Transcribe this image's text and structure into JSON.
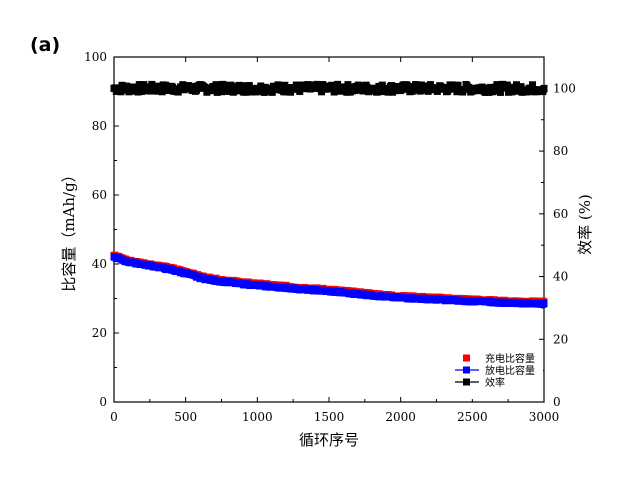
{
  "panel_label": "(a)",
  "chart_data": {
    "type": "scatter",
    "xlabel": "循环序号",
    "ylabel_left": "比容量（mAh/g）",
    "ylabel_right": "效率 (%)",
    "xlim": [
      0,
      3000
    ],
    "ylim_left": [
      0,
      100
    ],
    "ylim_right": [
      0,
      110
    ],
    "x_ticks": [
      0,
      500,
      1000,
      1500,
      2000,
      2500,
      3000
    ],
    "y_ticks_left": [
      0,
      20,
      40,
      60,
      80,
      100
    ],
    "y_ticks_right": [
      0,
      20,
      40,
      60,
      80,
      100
    ],
    "grid": false,
    "legend_position": "bottom-right",
    "series": [
      {
        "name": "充电比容量",
        "axis": "left",
        "color": "#ff0000",
        "marker": "square",
        "x": [
          0,
          100,
          200,
          300,
          400,
          500,
          600,
          700,
          800,
          900,
          1000,
          1100,
          1200,
          1300,
          1400,
          1500,
          1600,
          1700,
          1800,
          1900,
          2000,
          2100,
          2200,
          2300,
          2400,
          2500,
          2600,
          2700,
          2800,
          2900,
          3000
        ],
        "y": [
          42.5,
          41,
          40.3,
          39.6,
          38.8,
          37.8,
          36.5,
          35.7,
          35.2,
          34.7,
          34.3,
          33.9,
          33.6,
          33.2,
          32.9,
          32.6,
          32.2,
          31.8,
          31.4,
          31,
          30.7,
          30.5,
          30.3,
          30.1,
          29.9,
          29.7,
          29.5,
          29.3,
          29.2,
          29.1,
          29
        ]
      },
      {
        "name": "放电比容量",
        "axis": "left",
        "color": "#0000ff",
        "marker": "square",
        "x": [
          0,
          100,
          200,
          300,
          400,
          500,
          600,
          700,
          800,
          900,
          1000,
          1100,
          1200,
          1300,
          1400,
          1500,
          1600,
          1700,
          1800,
          1900,
          2000,
          2100,
          2200,
          2300,
          2400,
          2500,
          2600,
          2700,
          2800,
          2900,
          3000
        ],
        "y": [
          42,
          40.6,
          39.9,
          39.2,
          38.3,
          37.3,
          36,
          35.2,
          34.7,
          34.2,
          33.8,
          33.4,
          33.1,
          32.7,
          32.4,
          32.1,
          31.7,
          31.3,
          30.9,
          30.5,
          30.2,
          30,
          29.8,
          29.6,
          29.4,
          29.2,
          29,
          28.8,
          28.7,
          28.6,
          28.5
        ]
      },
      {
        "name": "效率",
        "axis": "right",
        "color": "#000000",
        "marker": "square",
        "x": [
          0,
          100,
          200,
          300,
          400,
          500,
          600,
          700,
          800,
          900,
          1000,
          1100,
          1200,
          1300,
          1400,
          1500,
          1600,
          1700,
          1800,
          1900,
          2000,
          2100,
          2200,
          2300,
          2400,
          2500,
          2600,
          2700,
          2800,
          2900,
          3000
        ],
        "y": [
          100,
          100,
          100,
          100,
          100,
          100,
          100,
          100,
          100,
          100,
          100,
          100,
          100,
          100,
          100,
          100,
          100,
          100,
          100,
          100,
          100,
          100,
          100,
          100,
          100,
          100,
          100,
          100,
          100,
          100,
          100
        ]
      }
    ]
  }
}
